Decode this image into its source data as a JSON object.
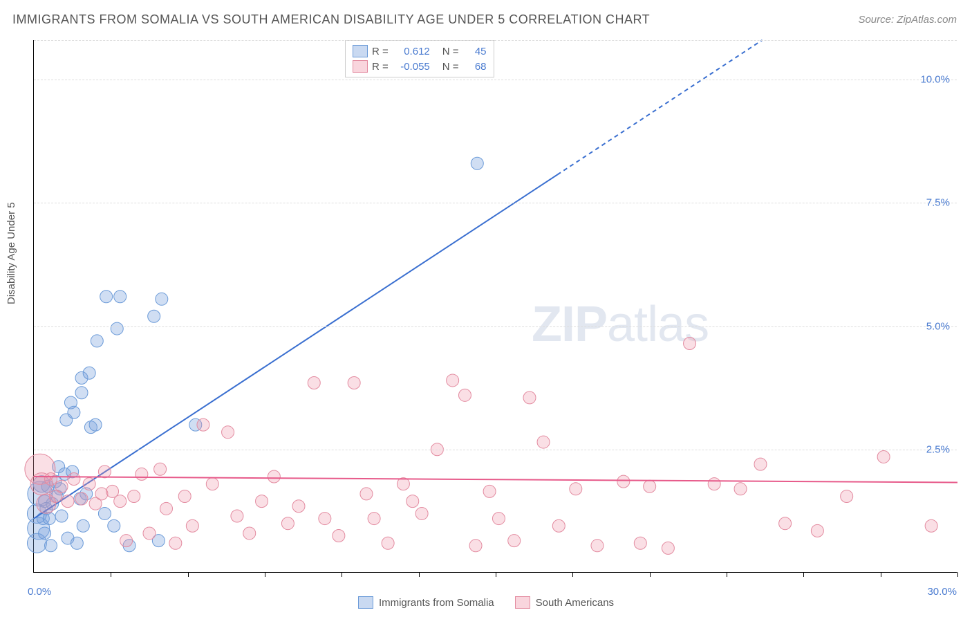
{
  "title": "IMMIGRANTS FROM SOMALIA VS SOUTH AMERICAN DISABILITY AGE UNDER 5 CORRELATION CHART",
  "source": "Source: ZipAtlas.com",
  "y_axis_label": "Disability Age Under 5",
  "watermark_zip": "ZIP",
  "watermark_atlas": "atlas",
  "chart": {
    "type": "scatter",
    "xlim": [
      0,
      30
    ],
    "ylim": [
      0,
      10.8
    ],
    "x_tick_interval_minor": 2.5,
    "x_labels": [
      {
        "v": 0,
        "text": "0.0%"
      },
      {
        "v": 30,
        "text": "30.0%"
      }
    ],
    "y_gridlines": [
      2.5,
      5.0,
      7.5,
      10.0,
      10.8
    ],
    "y_labels": [
      {
        "v": 2.5,
        "text": "2.5%"
      },
      {
        "v": 5.0,
        "text": "5.0%"
      },
      {
        "v": 7.5,
        "text": "7.5%"
      },
      {
        "v": 10.0,
        "text": "10.0%"
      }
    ],
    "background_color": "#ffffff",
    "grid_color": "#dddddd",
    "axis_color": "#000000",
    "tick_label_color": "#4a7bd0",
    "series": [
      {
        "name": "Immigrants from Somalia",
        "marker_fill": "rgba(120,160,220,0.35)",
        "marker_stroke": "#6a9ad8",
        "marker_r": 9,
        "trend_color": "#3a6fd0",
        "trend_width": 2,
        "trend_dash_after": 17,
        "trend_start": {
          "x": 0,
          "y": 1.1
        },
        "trend_slope": 0.41,
        "R": "0.612",
        "N": "45",
        "legend_swatch_fill": "rgba(120,160,220,0.4)",
        "legend_swatch_stroke": "#6a9ad8",
        "points": [
          {
            "x": 0.1,
            "y": 1.2,
            "r": 14
          },
          {
            "x": 0.15,
            "y": 0.9,
            "r": 16
          },
          {
            "x": 0.2,
            "y": 1.6,
            "r": 18
          },
          {
            "x": 0.25,
            "y": 1.8,
            "r": 12
          },
          {
            "x": 0.1,
            "y": 0.6,
            "r": 14
          },
          {
            "x": 0.3,
            "y": 1.1
          },
          {
            "x": 0.35,
            "y": 1.45
          },
          {
            "x": 0.35,
            "y": 0.8
          },
          {
            "x": 0.4,
            "y": 1.3
          },
          {
            "x": 0.45,
            "y": 1.75
          },
          {
            "x": 0.5,
            "y": 1.1
          },
          {
            "x": 0.55,
            "y": 0.55
          },
          {
            "x": 0.6,
            "y": 1.4
          },
          {
            "x": 0.7,
            "y": 1.85
          },
          {
            "x": 0.75,
            "y": 1.55
          },
          {
            "x": 0.8,
            "y": 2.15
          },
          {
            "x": 0.85,
            "y": 1.7
          },
          {
            "x": 0.9,
            "y": 1.15
          },
          {
            "x": 1.0,
            "y": 2.0
          },
          {
            "x": 1.05,
            "y": 3.1
          },
          {
            "x": 1.1,
            "y": 0.7
          },
          {
            "x": 1.2,
            "y": 3.45
          },
          {
            "x": 1.25,
            "y": 2.05
          },
          {
            "x": 1.3,
            "y": 3.25
          },
          {
            "x": 1.4,
            "y": 0.6
          },
          {
            "x": 1.5,
            "y": 1.5
          },
          {
            "x": 1.55,
            "y": 3.65
          },
          {
            "x": 1.55,
            "y": 3.95
          },
          {
            "x": 1.6,
            "y": 0.95
          },
          {
            "x": 1.7,
            "y": 1.6
          },
          {
            "x": 1.8,
            "y": 4.05
          },
          {
            "x": 1.85,
            "y": 2.95
          },
          {
            "x": 2.0,
            "y": 3.0
          },
          {
            "x": 2.05,
            "y": 4.7
          },
          {
            "x": 2.3,
            "y": 1.2
          },
          {
            "x": 2.35,
            "y": 5.6
          },
          {
            "x": 2.6,
            "y": 0.95
          },
          {
            "x": 2.7,
            "y": 4.95
          },
          {
            "x": 2.8,
            "y": 5.6
          },
          {
            "x": 3.1,
            "y": 0.55
          },
          {
            "x": 3.9,
            "y": 5.2
          },
          {
            "x": 4.05,
            "y": 0.65
          },
          {
            "x": 4.15,
            "y": 5.55
          },
          {
            "x": 5.25,
            "y": 3.0
          },
          {
            "x": 14.4,
            "y": 8.3
          }
        ]
      },
      {
        "name": "South Americans",
        "marker_fill": "rgba(240,150,170,0.3)",
        "marker_stroke": "#e38ba0",
        "marker_r": 9,
        "trend_color": "#e75a8a",
        "trend_width": 2,
        "trend_start": {
          "x": 0,
          "y": 1.95
        },
        "trend_slope": -0.004,
        "R": "-0.055",
        "N": "68",
        "legend_swatch_fill": "rgba(240,150,170,0.4)",
        "legend_swatch_stroke": "#e38ba0",
        "points": [
          {
            "x": 0.2,
            "y": 2.1,
            "r": 22
          },
          {
            "x": 0.25,
            "y": 1.8,
            "r": 16
          },
          {
            "x": 0.4,
            "y": 1.4,
            "r": 14
          },
          {
            "x": 0.55,
            "y": 1.9
          },
          {
            "x": 0.7,
            "y": 1.55
          },
          {
            "x": 0.9,
            "y": 1.75
          },
          {
            "x": 1.1,
            "y": 1.45
          },
          {
            "x": 1.3,
            "y": 1.9
          },
          {
            "x": 1.55,
            "y": 1.5
          },
          {
            "x": 1.8,
            "y": 1.8
          },
          {
            "x": 2.0,
            "y": 1.4
          },
          {
            "x": 2.2,
            "y": 1.6
          },
          {
            "x": 2.3,
            "y": 2.05
          },
          {
            "x": 2.55,
            "y": 1.65
          },
          {
            "x": 2.8,
            "y": 1.45
          },
          {
            "x": 3.0,
            "y": 0.65
          },
          {
            "x": 3.25,
            "y": 1.55
          },
          {
            "x": 3.5,
            "y": 2.0
          },
          {
            "x": 3.75,
            "y": 0.8
          },
          {
            "x": 4.1,
            "y": 2.1
          },
          {
            "x": 4.3,
            "y": 1.3
          },
          {
            "x": 4.6,
            "y": 0.6
          },
          {
            "x": 4.9,
            "y": 1.55
          },
          {
            "x": 5.15,
            "y": 0.95
          },
          {
            "x": 5.5,
            "y": 3.0
          },
          {
            "x": 5.8,
            "y": 1.8
          },
          {
            "x": 6.3,
            "y": 2.85
          },
          {
            "x": 6.6,
            "y": 1.15
          },
          {
            "x": 7.0,
            "y": 0.8
          },
          {
            "x": 7.4,
            "y": 1.45
          },
          {
            "x": 7.8,
            "y": 1.95
          },
          {
            "x": 8.25,
            "y": 1.0
          },
          {
            "x": 8.6,
            "y": 1.35
          },
          {
            "x": 9.1,
            "y": 3.85
          },
          {
            "x": 9.45,
            "y": 1.1
          },
          {
            "x": 9.9,
            "y": 0.75
          },
          {
            "x": 10.4,
            "y": 3.85
          },
          {
            "x": 10.8,
            "y": 1.6
          },
          {
            "x": 11.05,
            "y": 1.1
          },
          {
            "x": 11.5,
            "y": 0.6
          },
          {
            "x": 12.0,
            "y": 1.8
          },
          {
            "x": 12.3,
            "y": 1.45
          },
          {
            "x": 12.6,
            "y": 1.2
          },
          {
            "x": 13.1,
            "y": 2.5
          },
          {
            "x": 13.6,
            "y": 3.9
          },
          {
            "x": 14.0,
            "y": 3.6
          },
          {
            "x": 14.35,
            "y": 0.55
          },
          {
            "x": 14.8,
            "y": 1.65
          },
          {
            "x": 15.1,
            "y": 1.1
          },
          {
            "x": 15.6,
            "y": 0.65
          },
          {
            "x": 16.1,
            "y": 3.55
          },
          {
            "x": 16.55,
            "y": 2.65
          },
          {
            "x": 17.05,
            "y": 0.95
          },
          {
            "x": 17.6,
            "y": 1.7
          },
          {
            "x": 18.3,
            "y": 0.55
          },
          {
            "x": 19.15,
            "y": 1.85
          },
          {
            "x": 19.7,
            "y": 0.6
          },
          {
            "x": 20.0,
            "y": 1.75
          },
          {
            "x": 20.6,
            "y": 0.5
          },
          {
            "x": 21.3,
            "y": 4.65
          },
          {
            "x": 22.1,
            "y": 1.8
          },
          {
            "x": 22.95,
            "y": 1.7
          },
          {
            "x": 23.6,
            "y": 2.2
          },
          {
            "x": 24.4,
            "y": 1.0
          },
          {
            "x": 25.45,
            "y": 0.85
          },
          {
            "x": 26.4,
            "y": 1.55
          },
          {
            "x": 27.6,
            "y": 2.35
          },
          {
            "x": 29.15,
            "y": 0.95
          }
        ]
      }
    ]
  },
  "stats_legend": {
    "r_label": "R =",
    "n_label": "N ="
  },
  "bottom_legend_order": [
    0,
    1
  ]
}
